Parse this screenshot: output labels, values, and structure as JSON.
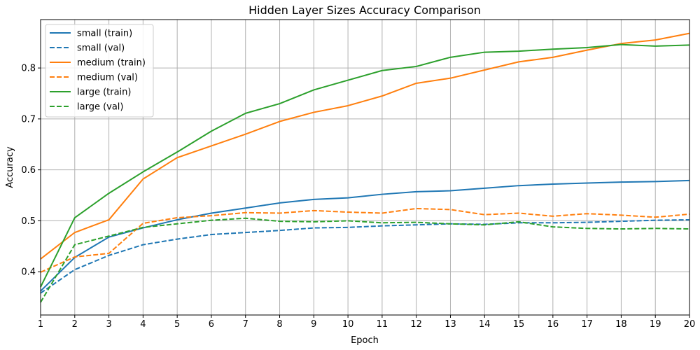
{
  "chart_data": {
    "type": "line",
    "title": "Hidden Layer Sizes Accuracy Comparison",
    "xlabel": "Epoch",
    "ylabel": "Accuracy",
    "xlim": [
      1,
      20
    ],
    "ylim": [
      0.315,
      0.895
    ],
    "x": [
      1,
      2,
      3,
      4,
      5,
      6,
      7,
      8,
      9,
      10,
      11,
      12,
      13,
      14,
      15,
      16,
      17,
      18,
      19,
      20
    ],
    "xticks": [
      1,
      2,
      3,
      4,
      5,
      6,
      7,
      8,
      9,
      10,
      11,
      12,
      13,
      14,
      15,
      16,
      17,
      18,
      19,
      20
    ],
    "xtick_labels": [
      "1",
      "2",
      "3",
      "4",
      "5",
      "6",
      "7",
      "8",
      "9",
      "10",
      "11",
      "12",
      "13",
      "14",
      "15",
      "16",
      "17",
      "18",
      "19",
      "20"
    ],
    "yticks": [
      0.4,
      0.5,
      0.6,
      0.7,
      0.8
    ],
    "ytick_labels": [
      "0.4",
      "0.5",
      "0.6",
      "0.7",
      "0.8"
    ],
    "grid": true,
    "legend_position": "top-left",
    "series": [
      {
        "name": "small (train)",
        "color": "#1f77b4",
        "dash": "solid",
        "values": [
          0.362,
          0.428,
          0.468,
          0.486,
          0.502,
          0.515,
          0.525,
          0.535,
          0.542,
          0.545,
          0.552,
          0.557,
          0.559,
          0.564,
          0.569,
          0.572,
          0.574,
          0.576,
          0.577,
          0.579
        ]
      },
      {
        "name": "small (val)",
        "color": "#1f77b4",
        "dash": "dashed",
        "values": [
          0.358,
          0.404,
          0.432,
          0.453,
          0.464,
          0.473,
          0.477,
          0.481,
          0.486,
          0.487,
          0.49,
          0.492,
          0.494,
          0.493,
          0.496,
          0.496,
          0.497,
          0.499,
          0.501,
          0.502
        ]
      },
      {
        "name": "medium (train)",
        "color": "#ff7f0e",
        "dash": "solid",
        "values": [
          0.425,
          0.477,
          0.502,
          0.582,
          0.624,
          0.647,
          0.67,
          0.695,
          0.713,
          0.726,
          0.745,
          0.77,
          0.78,
          0.796,
          0.812,
          0.821,
          0.835,
          0.848,
          0.855,
          0.868
        ]
      },
      {
        "name": "medium (val)",
        "color": "#ff7f0e",
        "dash": "dashed",
        "values": [
          0.399,
          0.429,
          0.436,
          0.495,
          0.506,
          0.51,
          0.516,
          0.515,
          0.52,
          0.517,
          0.515,
          0.524,
          0.522,
          0.512,
          0.515,
          0.509,
          0.514,
          0.511,
          0.507,
          0.513
        ]
      },
      {
        "name": "large (train)",
        "color": "#2ca02c",
        "dash": "solid",
        "values": [
          0.37,
          0.506,
          0.554,
          0.596,
          0.635,
          0.676,
          0.711,
          0.73,
          0.757,
          0.776,
          0.795,
          0.803,
          0.821,
          0.831,
          0.833,
          0.837,
          0.84,
          0.846,
          0.843,
          0.845
        ]
      },
      {
        "name": "large (val)",
        "color": "#2ca02c",
        "dash": "dashed",
        "values": [
          0.34,
          0.453,
          0.47,
          0.487,
          0.494,
          0.501,
          0.505,
          0.499,
          0.498,
          0.5,
          0.496,
          0.497,
          0.494,
          0.492,
          0.498,
          0.488,
          0.485,
          0.484,
          0.485,
          0.484
        ]
      }
    ]
  }
}
